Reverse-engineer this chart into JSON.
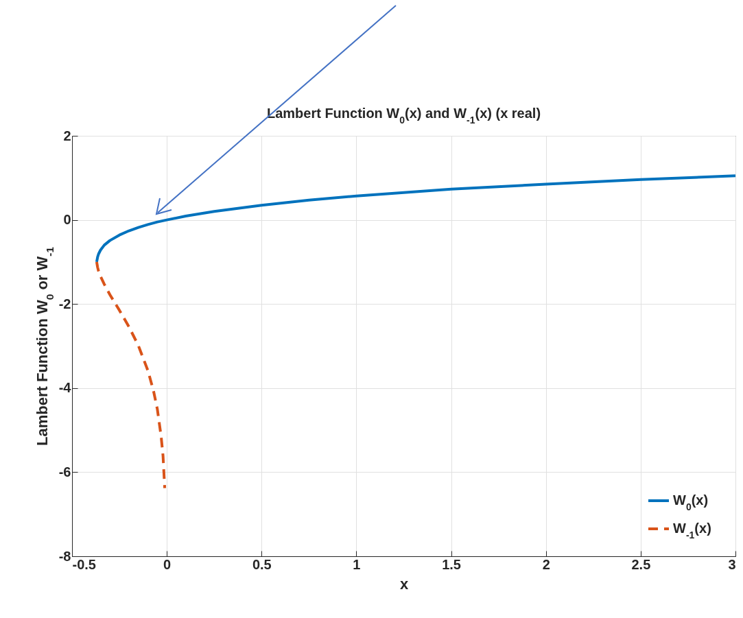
{
  "chart_data": {
    "type": "line",
    "title": "Lambert Function W$_{0}$(x) and W$_{-1}$(x) (x real)",
    "xlabel": "x",
    "ylabel": "Lambert Function W$_{0}$ or W$_{-1}$",
    "series": [
      {
        "name": "W$_{0}$(x)",
        "color": "#0072bd",
        "line_style": "solid",
        "x": [
          -0.37,
          -0.365,
          -0.36,
          -0.35,
          -0.33,
          -0.3,
          -0.25,
          -0.2,
          -0.15,
          -0.1,
          -0.05,
          0,
          0.1,
          0.25,
          0.5,
          0.75,
          1,
          1.25,
          1.5,
          2,
          2.5,
          3
        ],
        "values": [
          -1,
          -0.88,
          -0.81,
          -0.72,
          -0.6,
          -0.49,
          -0.36,
          -0.26,
          -0.18,
          -0.11,
          -0.05,
          0,
          0.09,
          0.2,
          0.35,
          0.47,
          0.57,
          0.65,
          0.73,
          0.85,
          0.96,
          1.05
        ]
      },
      {
        "name": "W$_{-1}$(x)",
        "color": "#d95319",
        "line_style": "dashed",
        "x": [
          -0.37,
          -0.365,
          -0.36,
          -0.35,
          -0.33,
          -0.3,
          -0.25,
          -0.2,
          -0.15,
          -0.1,
          -0.07,
          -0.05,
          -0.03,
          -0.02,
          -0.011
        ],
        "values": [
          -1,
          -1.13,
          -1.22,
          -1.34,
          -1.53,
          -1.78,
          -2.15,
          -2.54,
          -2.99,
          -3.58,
          -4.07,
          -4.5,
          -5.15,
          -5.61,
          -6.38
        ]
      }
    ],
    "xlim": [
      -0.5,
      3
    ],
    "ylim": [
      -8,
      2
    ],
    "xticks": [
      -0.5,
      0,
      0.5,
      1,
      1.5,
      2,
      2.5,
      3
    ],
    "yticks": [
      -8,
      -6,
      -4,
      -2,
      0,
      2
    ],
    "grid": true,
    "legend": "bottom right",
    "marker": "none"
  }
}
